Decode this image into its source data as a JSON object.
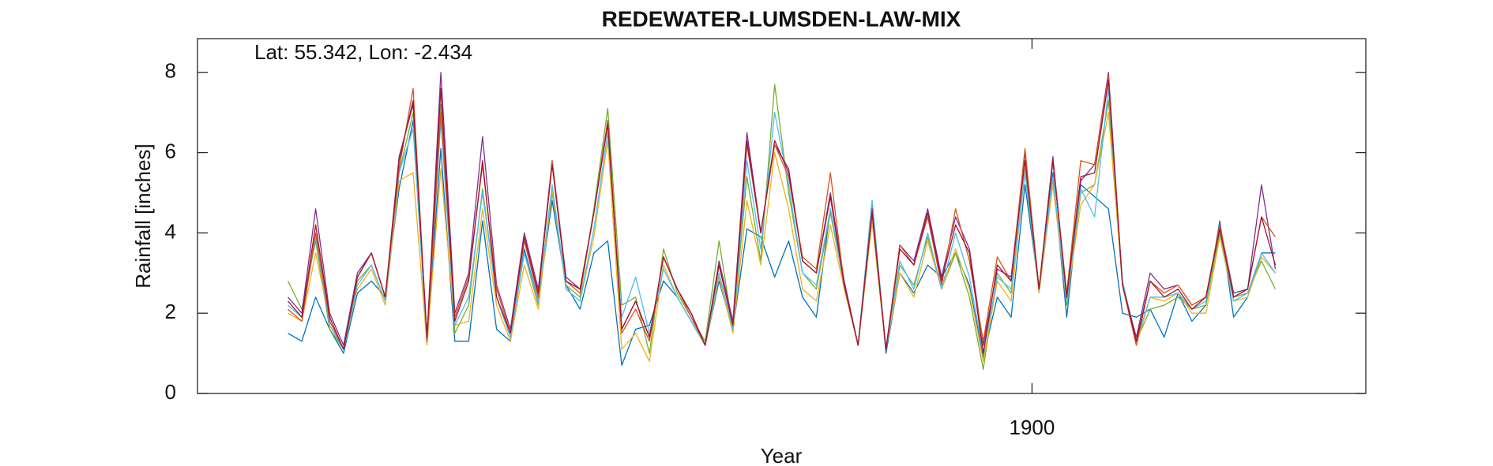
{
  "chart_data": {
    "type": "line",
    "title": "REDEWATER-LUMSDEN-LAW-MIX",
    "annotation": "Lat: 55.342, Lon: -2.434",
    "xlabel": "Year",
    "ylabel": "Rainfall [inches]",
    "xlim": [
      1895,
      1902
    ],
    "xticks": [
      1900
    ],
    "ylim": [
      0,
      8.84
    ],
    "yticks": [
      0,
      2,
      4,
      6,
      8
    ],
    "x": [
      1895.542,
      1895.625,
      1895.708,
      1895.792,
      1895.875,
      1895.958,
      1896.042,
      1896.125,
      1896.208,
      1896.292,
      1896.375,
      1896.458,
      1896.542,
      1896.625,
      1896.708,
      1896.792,
      1896.875,
      1896.958,
      1897.042,
      1897.125,
      1897.208,
      1897.292,
      1897.375,
      1897.458,
      1897.542,
      1897.625,
      1897.708,
      1897.792,
      1897.875,
      1897.958,
      1898.042,
      1898.125,
      1898.208,
      1898.292,
      1898.375,
      1898.458,
      1898.542,
      1898.625,
      1898.708,
      1898.792,
      1898.875,
      1898.958,
      1899.042,
      1899.125,
      1899.208,
      1899.292,
      1899.375,
      1899.458,
      1899.542,
      1899.625,
      1899.708,
      1899.792,
      1899.875,
      1899.958,
      1900.042,
      1900.125,
      1900.208,
      1900.292,
      1900.375,
      1900.458,
      1900.542,
      1900.625,
      1900.708,
      1900.792,
      1900.875,
      1900.958,
      1901.042,
      1901.125,
      1901.208,
      1901.292,
      1901.375,
      1901.458
    ],
    "series": [
      {
        "color": "#0072BD",
        "values": [
          1.5,
          1.3,
          2.4,
          1.6,
          1.0,
          2.5,
          2.8,
          2.4,
          5.1,
          6.8,
          1.3,
          6.1,
          1.3,
          1.3,
          4.3,
          1.6,
          1.3,
          3.6,
          2.3,
          4.8,
          2.7,
          2.1,
          3.5,
          3.8,
          0.7,
          1.6,
          1.7,
          2.8,
          2.4,
          1.8,
          1.2,
          2.8,
          1.6,
          4.1,
          3.9,
          2.9,
          3.8,
          2.4,
          1.9,
          4.6,
          2.7,
          1.2,
          4.8,
          1.0,
          3.0,
          2.5,
          3.2,
          2.9,
          3.5,
          2.7,
          0.9,
          2.4,
          1.9,
          5.2,
          2.6,
          5.5,
          1.9,
          5.2,
          4.9,
          4.6,
          2.0,
          1.9,
          2.1,
          1.4,
          2.5,
          1.8,
          2.2,
          4.3,
          1.9,
          2.4,
          3.5,
          3.5
        ]
      },
      {
        "color": "#77AC30",
        "values": [
          2.8,
          2.1,
          3.8,
          1.6,
          1.1,
          2.8,
          3.2,
          2.3,
          5.5,
          7.0,
          1.3,
          7.2,
          1.5,
          2.2,
          5.1,
          2.4,
          1.4,
          3.5,
          2.2,
          5.0,
          2.7,
          2.4,
          4.6,
          7.1,
          2.2,
          2.4,
          1.0,
          3.6,
          2.5,
          1.9,
          1.3,
          3.8,
          1.6,
          5.4,
          3.3,
          7.7,
          5.0,
          3.0,
          2.6,
          4.5,
          2.7,
          1.2,
          4.3,
          1.1,
          3.2,
          2.7,
          3.9,
          2.6,
          3.5,
          2.4,
          0.6,
          3.0,
          2.5,
          5.5,
          2.6,
          5.3,
          2.2,
          5.0,
          5.2,
          7.3,
          2.8,
          1.3,
          2.1,
          2.2,
          2.4,
          2.1,
          2.2,
          4.0,
          2.4,
          2.5,
          3.3,
          2.6
        ]
      },
      {
        "color": "#EDB120",
        "values": [
          2.0,
          1.8,
          3.5,
          1.8,
          1.1,
          2.6,
          3.1,
          2.2,
          5.3,
          5.5,
          1.2,
          5.6,
          1.7,
          1.8,
          4.6,
          2.2,
          1.3,
          3.2,
          2.1,
          5.1,
          2.6,
          2.3,
          3.9,
          6.3,
          1.1,
          1.5,
          0.8,
          3.2,
          2.4,
          1.8,
          1.2,
          2.9,
          1.5,
          4.8,
          3.2,
          6.0,
          4.6,
          2.6,
          2.3,
          4.2,
          2.6,
          1.2,
          4.3,
          1.1,
          3.0,
          2.4,
          3.8,
          2.6,
          3.6,
          2.6,
          0.8,
          2.8,
          2.3,
          5.6,
          2.5,
          5.2,
          2.3,
          4.7,
          5.2,
          7.0,
          2.7,
          1.2,
          2.4,
          2.3,
          2.5,
          2.0,
          2.0,
          3.9,
          2.3,
          2.4,
          3.4,
          3.0
        ]
      },
      {
        "color": "#4DBEEE",
        "values": [
          2.2,
          1.9,
          3.9,
          1.7,
          1.1,
          2.7,
          3.2,
          2.3,
          5.5,
          6.6,
          1.3,
          6.8,
          1.7,
          2.4,
          5.0,
          2.4,
          1.4,
          3.5,
          2.3,
          5.2,
          2.6,
          2.3,
          4.1,
          6.5,
          1.9,
          2.9,
          1.5,
          3.1,
          2.4,
          1.8,
          1.2,
          3.0,
          1.6,
          5.8,
          3.6,
          7.0,
          5.2,
          3.0,
          2.7,
          4.6,
          2.7,
          1.2,
          4.8,
          1.1,
          3.3,
          2.6,
          4.0,
          2.6,
          4.0,
          2.9,
          1.0,
          2.9,
          2.6,
          5.5,
          2.6,
          5.4,
          2.3,
          5.1,
          4.4,
          7.6,
          2.8,
          1.3,
          2.4,
          2.4,
          2.5,
          2.1,
          2.3,
          4.1,
          2.3,
          2.5,
          3.5,
          3.0
        ]
      },
      {
        "color": "#7E2F8E",
        "values": [
          2.4,
          2.0,
          4.6,
          2.0,
          1.2,
          3.0,
          3.5,
          2.4,
          5.9,
          7.2,
          1.4,
          8.0,
          2.0,
          3.0,
          6.4,
          2.7,
          1.6,
          4.0,
          2.6,
          5.8,
          2.9,
          2.6,
          4.5,
          6.8,
          1.6,
          2.3,
          1.4,
          3.4,
          2.6,
          2.0,
          1.2,
          3.3,
          1.8,
          6.5,
          4.0,
          6.2,
          5.6,
          3.3,
          3.0,
          5.0,
          2.8,
          1.2,
          4.6,
          1.1,
          3.7,
          3.3,
          4.6,
          2.9,
          4.4,
          3.6,
          1.2,
          3.1,
          2.9,
          6.0,
          2.6,
          5.9,
          2.4,
          5.3,
          5.7,
          8.0,
          2.7,
          1.4,
          3.0,
          2.6,
          2.7,
          2.2,
          2.4,
          4.2,
          2.5,
          2.6,
          5.2,
          3.1
        ]
      },
      {
        "color": "#D95319",
        "values": [
          2.1,
          1.8,
          4.0,
          1.8,
          1.1,
          2.9,
          3.5,
          2.4,
          5.6,
          7.6,
          1.3,
          7.0,
          1.9,
          2.9,
          5.7,
          2.6,
          1.5,
          3.8,
          2.4,
          5.8,
          2.8,
          2.5,
          4.5,
          6.8,
          1.5,
          2.1,
          1.3,
          3.4,
          2.6,
          1.9,
          1.2,
          3.2,
          1.7,
          6.2,
          4.0,
          6.2,
          5.4,
          3.4,
          3.1,
          5.5,
          2.7,
          1.2,
          4.5,
          1.1,
          3.7,
          3.2,
          4.4,
          2.7,
          4.6,
          3.3,
          1.3,
          3.4,
          2.8,
          6.1,
          2.6,
          5.8,
          2.5,
          5.8,
          5.7,
          7.9,
          2.7,
          1.2,
          2.8,
          2.5,
          2.7,
          2.2,
          2.4,
          4.2,
          2.4,
          2.6,
          4.4,
          3.9
        ]
      },
      {
        "color": "#A2142F",
        "values": [
          2.3,
          1.9,
          4.2,
          1.9,
          1.1,
          2.9,
          3.5,
          2.4,
          5.8,
          7.3,
          1.4,
          7.6,
          1.8,
          2.8,
          5.8,
          2.4,
          1.5,
          3.9,
          2.5,
          5.7,
          2.8,
          2.6,
          4.5,
          6.7,
          1.6,
          2.3,
          1.4,
          3.4,
          2.6,
          2.0,
          1.2,
          3.2,
          1.7,
          6.3,
          4.0,
          6.3,
          5.5,
          3.3,
          3.0,
          4.9,
          2.7,
          1.2,
          4.5,
          1.1,
          3.6,
          3.2,
          4.5,
          2.8,
          4.2,
          3.5,
          1.0,
          3.2,
          2.8,
          5.8,
          2.6,
          5.8,
          2.4,
          5.4,
          5.5,
          7.8,
          2.7,
          1.3,
          2.8,
          2.4,
          2.6,
          2.1,
          2.4,
          4.1,
          2.4,
          2.6,
          4.4,
          3.2
        ]
      }
    ]
  }
}
